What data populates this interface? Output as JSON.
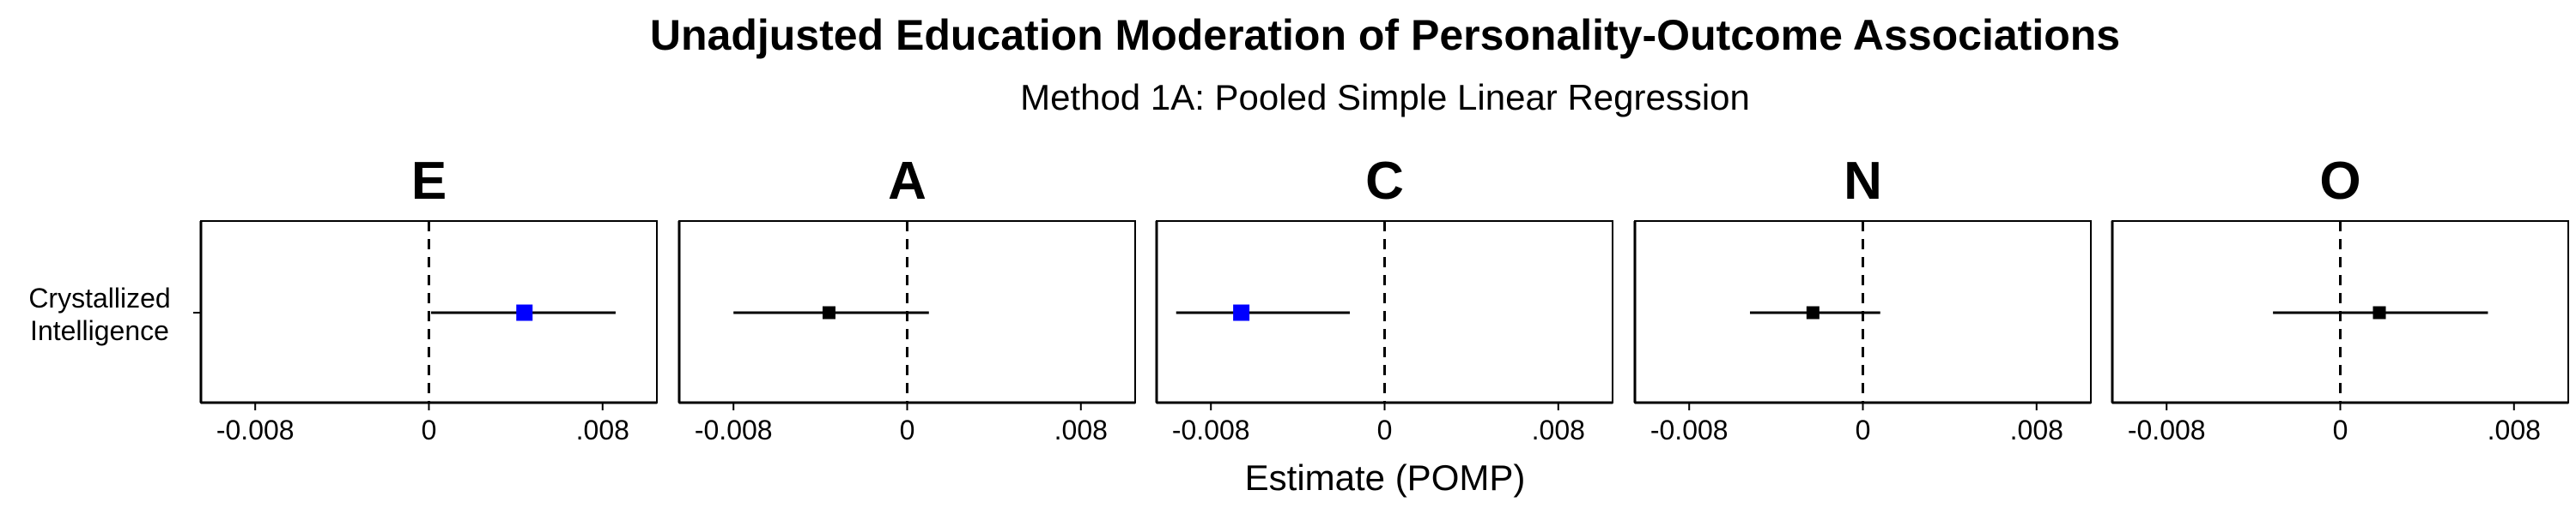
{
  "chart_data": {
    "type": "forest",
    "title": "Unadjusted Education Moderation of Personality-Outcome Associations",
    "subtitle": "Method 1A: Pooled Simple Linear Regression",
    "xlabel": "Estimate (POMP)",
    "x_ticks": [
      {
        "value": -0.008,
        "label": "-0.008"
      },
      {
        "value": 0,
        "label": "0"
      },
      {
        "value": 0.008,
        "label": ".008"
      }
    ],
    "xlim": [
      -0.0105,
      0.0105
    ],
    "y_categories": [
      "Crystallized\nIntelligence"
    ],
    "reference_line": 0,
    "colors": {
      "significant": "#0000ff",
      "nonsignificant": "#000000"
    },
    "panels": [
      {
        "facet": "E",
        "estimate": 0.0044,
        "ci_low": 0.0001,
        "ci_high": 0.0086,
        "significant": true
      },
      {
        "facet": "A",
        "estimate": -0.0036,
        "ci_low": -0.008,
        "ci_high": 0.001,
        "significant": false
      },
      {
        "facet": "C",
        "estimate": -0.0066,
        "ci_low": -0.0096,
        "ci_high": -0.0016,
        "significant": true
      },
      {
        "facet": "N",
        "estimate": -0.0023,
        "ci_low": -0.0052,
        "ci_high": 0.0008,
        "significant": false
      },
      {
        "facet": "O",
        "estimate": 0.0018,
        "ci_low": -0.0031,
        "ci_high": 0.0068,
        "significant": false
      }
    ]
  }
}
